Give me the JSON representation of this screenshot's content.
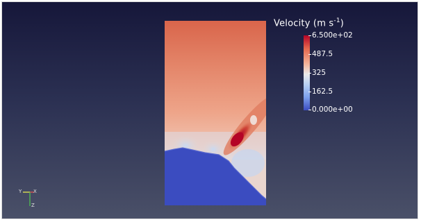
{
  "legend": {
    "title_prefix": "Velocity (m s",
    "title_exponent": "-1",
    "title_suffix": ")",
    "max_label": "6.500e+02",
    "tick_2": "487.5",
    "tick_3": "325",
    "tick_4": "162.5",
    "min_label": "0.000e+00"
  },
  "orientation_axes": {
    "y_label": "Y",
    "x_label": "X",
    "z_label": "Z"
  },
  "colors": {
    "bg_top": "#16173a",
    "bg_bottom": "#4a5068",
    "field_high": "#b40426",
    "field_mid": "#e8896a",
    "field_low": "#3b4cc0"
  }
}
